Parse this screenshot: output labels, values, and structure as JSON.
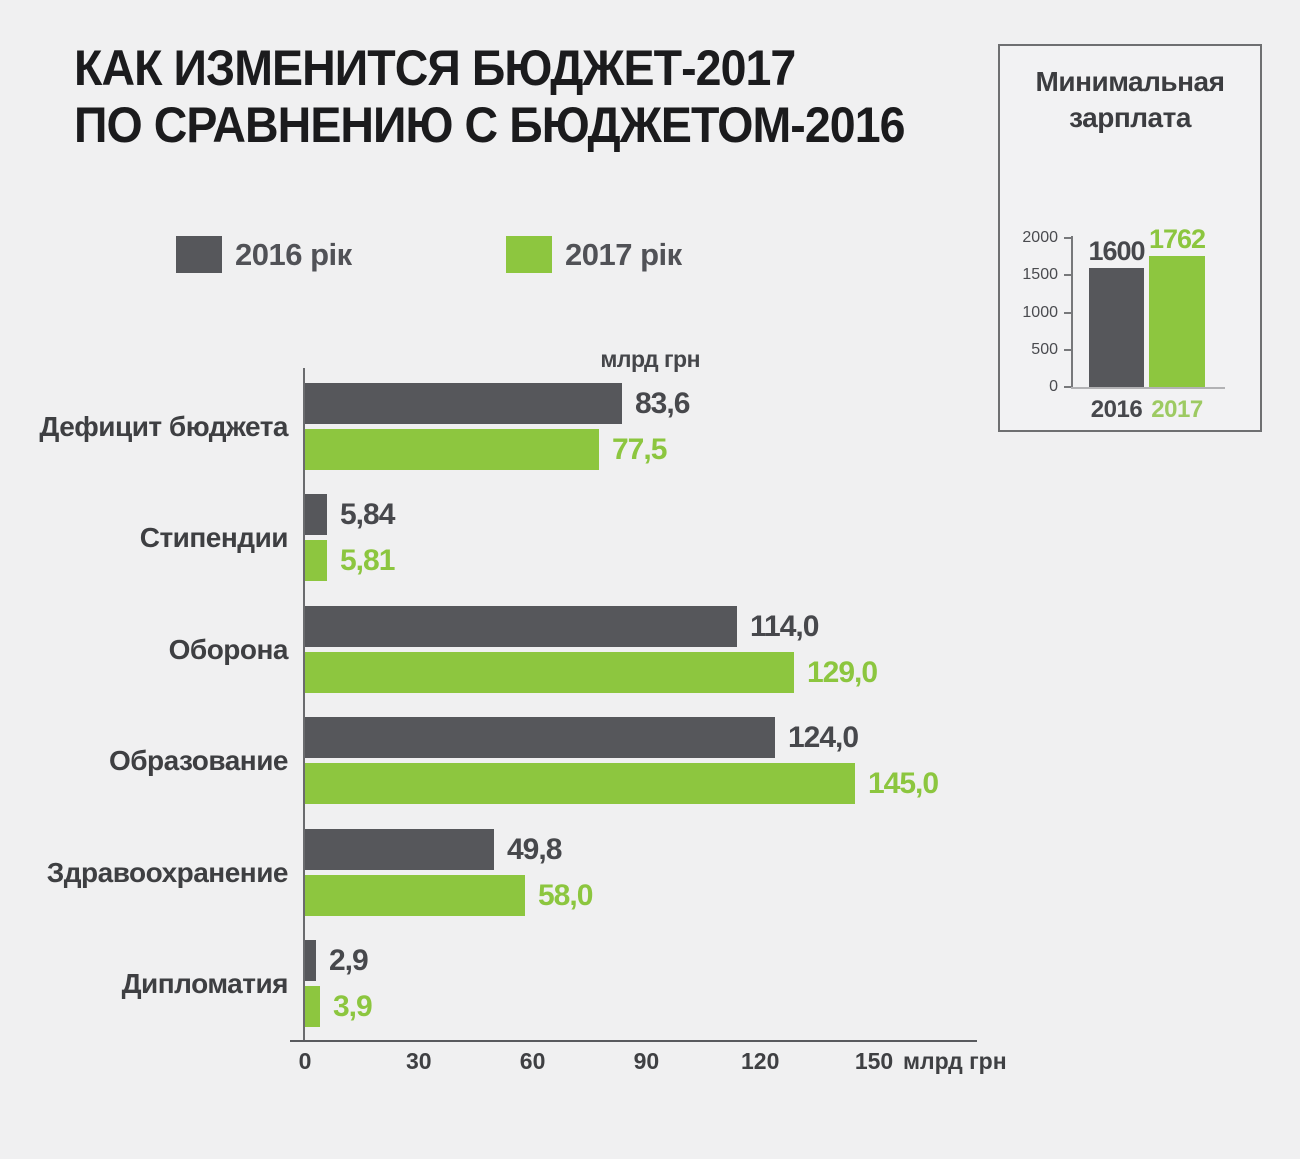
{
  "colors": {
    "background": "#f0f0f1",
    "bar_2016": "#56575b",
    "bar_2017": "#8dc63f",
    "value_text_2016": "#47484c",
    "value_text_2017": "#8cc63f",
    "year_label_2017": "#9dca62"
  },
  "title": {
    "line1": "КАК ИЗМЕНИТСЯ БЮДЖЕТ-2017",
    "line2": "ПО СРАВНЕНИЮ С БЮДЖЕТОМ-2016"
  },
  "legend": {
    "items": [
      {
        "label": "2016 рік",
        "color": "#56575b"
      },
      {
        "label": "2017 рік",
        "color": "#8dc63f"
      }
    ]
  },
  "chart_data": [
    {
      "type": "bar",
      "orientation": "horizontal",
      "title": "Как изменится бюджет-2017 по сравнению с бюджетом-2016",
      "unit_label": "млрд грн",
      "x_max": 150,
      "x_ticks": [
        "0",
        "30",
        "60",
        "90",
        "120",
        "150"
      ],
      "categories": [
        "Дефицит бюджета",
        "Стипендии",
        "Оборона",
        "Образование",
        "Здравоохранение",
        "Дипломатия"
      ],
      "series": [
        {
          "name": "2016 рік",
          "color": "#56575b",
          "values": [
            83.6,
            5.84,
            114.0,
            124.0,
            49.8,
            2.9
          ]
        },
        {
          "name": "2017 рік",
          "color": "#8dc63f",
          "values": [
            77.5,
            5.81,
            129.0,
            145.0,
            58.0,
            3.9
          ]
        }
      ],
      "value_labels": [
        {
          "v2016": "83,6",
          "v2017": "77,5"
        },
        {
          "v2016": "5,84",
          "v2017": "5,81"
        },
        {
          "v2016": "114,0",
          "v2017": "129,0"
        },
        {
          "v2016": "124,0",
          "v2017": "145,0"
        },
        {
          "v2016": "49,8",
          "v2017": "58,0"
        },
        {
          "v2016": "2,9",
          "v2017": "3,9"
        }
      ],
      "legend_position": "top",
      "grid": false
    },
    {
      "type": "bar",
      "orientation": "vertical",
      "title": "Минимальная зарплата",
      "y_max": 2000,
      "y_ticks": [
        "2000",
        "1500",
        "1000",
        "500",
        "0"
      ],
      "categories": [
        "2016",
        "2017"
      ],
      "values": [
        1600,
        1762
      ],
      "value_labels": [
        "1600",
        "1762"
      ],
      "bar_colors": [
        "#56575b",
        "#8dc63f"
      ],
      "grid": false
    }
  ]
}
